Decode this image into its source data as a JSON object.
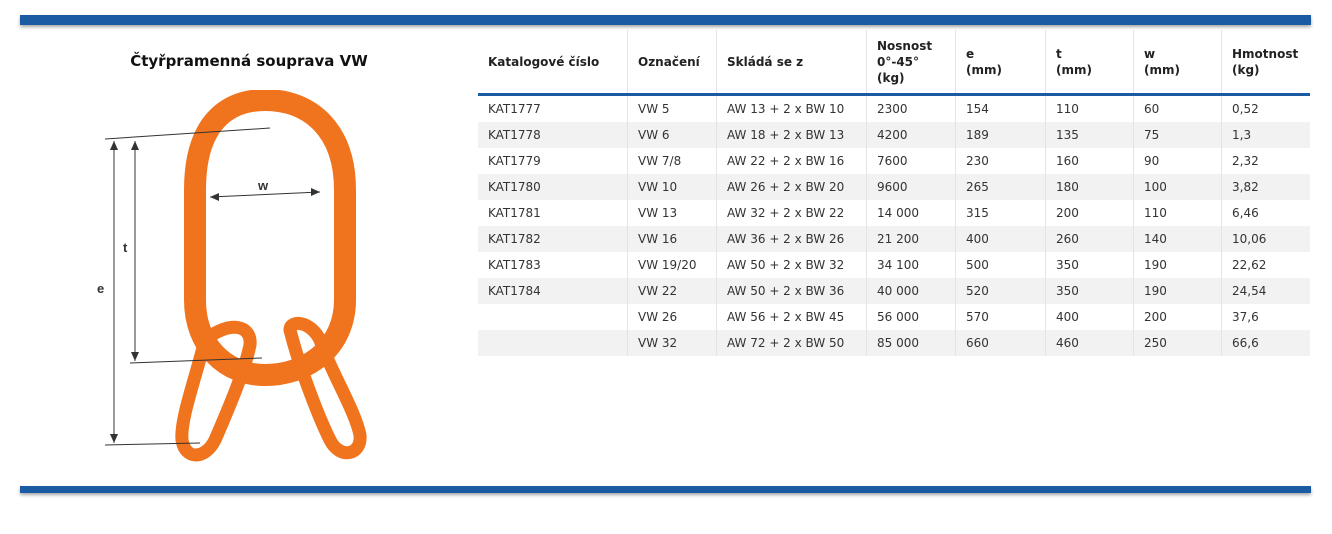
{
  "title": "Čtyřpramenná souprava VW",
  "figure": {
    "labels": {
      "e": "e",
      "t": "t",
      "w": "w"
    },
    "color": "#f0731e"
  },
  "accent": "#1a5ba3",
  "table": {
    "headers": [
      [
        "Katalogové číslo"
      ],
      [
        "Označení"
      ],
      [
        "Skládá se z"
      ],
      [
        "Nosnost",
        "0°-45°",
        "(kg)"
      ],
      [
        "e",
        "(mm)"
      ],
      [
        "t",
        "(mm)"
      ],
      [
        "w",
        "(mm)"
      ],
      [
        "Hmotnost",
        "(kg)"
      ]
    ],
    "rows": [
      [
        "KAT1777",
        "VW 5",
        "AW 13 + 2 x BW 10",
        "2300",
        "154",
        "110",
        "60",
        "0,52"
      ],
      [
        "KAT1778",
        "VW 6",
        "AW 18 + 2 x BW 13",
        "4200",
        "189",
        "135",
        "75",
        "1,3"
      ],
      [
        "KAT1779",
        "VW 7/8",
        "AW 22 + 2 x BW 16",
        "7600",
        "230",
        "160",
        "90",
        "2,32"
      ],
      [
        "KAT1780",
        "VW 10",
        "AW 26 + 2 x BW 20",
        "9600",
        "265",
        "180",
        "100",
        "3,82"
      ],
      [
        "KAT1781",
        "VW 13",
        "AW 32 + 2 x BW 22",
        "14 000",
        "315",
        "200",
        "110",
        "6,46"
      ],
      [
        "KAT1782",
        "VW 16",
        "AW 36 + 2 x BW 26",
        "21 200",
        "400",
        "260",
        "140",
        "10,06"
      ],
      [
        "KAT1783",
        "VW 19/20",
        "AW 50 + 2 x BW 32",
        "34 100",
        "500",
        "350",
        "190",
        "22,62"
      ],
      [
        "KAT1784",
        "VW 22",
        "AW 50 + 2 x BW 36",
        "40 000",
        "520",
        "350",
        "190",
        "24,54"
      ],
      [
        "",
        "VW 26",
        "AW 56 + 2 x BW 45",
        "56 000",
        "570",
        "400",
        "200",
        "37,6"
      ],
      [
        "",
        "VW 32",
        "AW 72 + 2 x BW 50",
        "85 000",
        "660",
        "460",
        "250",
        "66,6"
      ]
    ]
  }
}
